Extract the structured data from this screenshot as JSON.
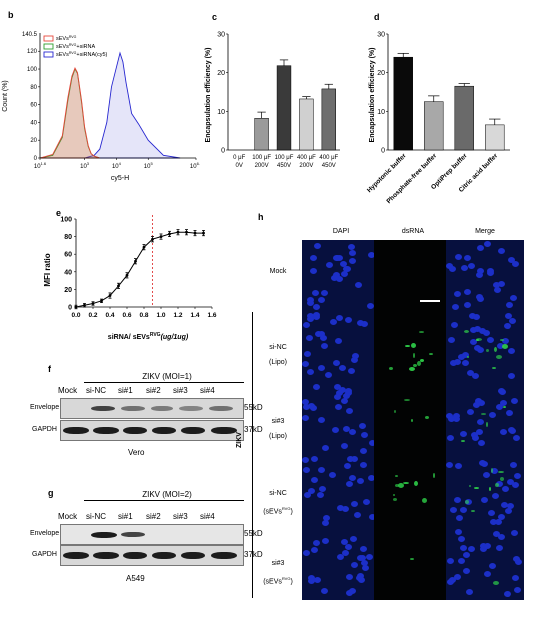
{
  "panels": {
    "b": {
      "letter": "b",
      "legend": [
        {
          "label": "sEVs",
          "sup": "RVG",
          "tail": "",
          "color": "#e8473c"
        },
        {
          "label": "sEVs",
          "sup": "RVG",
          "tail": "+siRNA",
          "color": "#2f9e2f"
        },
        {
          "label": "sEVs",
          "sup": "RVG",
          "tail": "+siRNA(cy5)",
          "color": "#2727d0"
        }
      ],
      "ylabel": "Count (%)",
      "xlabel": "cy5-H",
      "y_top": "140.5",
      "ytick_labels": [
        "0",
        "20",
        "40",
        "60",
        "80",
        "100",
        "120"
      ],
      "xtick_labels": [
        {
          "base": "10",
          "exp": "1.6"
        },
        {
          "base": "10",
          "exp": "3"
        },
        {
          "base": "10",
          "exp": "4"
        },
        {
          "base": "10",
          "exp": "5"
        },
        {
          "base": "10",
          "exp": "6.5"
        }
      ]
    },
    "c": {
      "letter": "c",
      "ylabel": "Encapsulation efficiency (%)",
      "categories": [
        [
          "0 μF",
          "0V"
        ],
        [
          "100 μF",
          "200V"
        ],
        [
          "100 μF",
          "450V"
        ],
        [
          "400 μF",
          "200V"
        ],
        [
          "400 μF",
          "450V"
        ]
      ]
    },
    "d": {
      "letter": "d",
      "ylabel": "Encapsulation efficiency (%)",
      "categories": [
        "Hypotonic buffer",
        "Phosphate-free buffer",
        "OptiPrep buffer",
        "Citric acid buffer"
      ]
    },
    "e": {
      "letter": "e",
      "ylabel": "MFI ratio",
      "xlabel_main": "siRNA/ sEVs",
      "xlabel_sup": "RVG",
      "xlabel_unit": "(ug/1ug)"
    },
    "f": {
      "letter": "f",
      "header": "ZIKV (MOI=1)",
      "lanes": [
        "Mock",
        "si-NC",
        "si#1",
        "si#2",
        "si#3",
        "si#4"
      ],
      "rows": [
        {
          "label": "Envelope",
          "size": "55kD"
        },
        {
          "label": "GAPDH",
          "size": "37kD"
        }
      ],
      "cell_line": "Vero"
    },
    "g": {
      "letter": "g",
      "header": "ZIKV (MOI=2)",
      "lanes": [
        "Mock",
        "si-NC",
        "si#1",
        "si#2",
        "si#3",
        "si#4"
      ],
      "rows": [
        {
          "label": "Envelope",
          "size": "55kD"
        },
        {
          "label": "GAPDH",
          "size": "37kD"
        }
      ],
      "cell_line": "A549"
    },
    "h": {
      "letter": "h",
      "columns": [
        "DAPI",
        "dsRNA",
        "Merge"
      ],
      "rows": [
        {
          "line1": "Mock",
          "line2": "",
          "sup": ""
        },
        {
          "line1": "si-NC",
          "line2": "(Lipo)",
          "sup": ""
        },
        {
          "line1": "si#3",
          "line2": "(Lipo)",
          "sup": ""
        },
        {
          "line1": "si-NC",
          "line2": "(sEVs",
          "sup": "RVG"
        },
        {
          "line1": "si#3",
          "line2": "(sEVs",
          "sup": "RVG"
        }
      ],
      "group_label": "ZIKV"
    }
  },
  "chart_data": [
    {
      "panel": "b",
      "type": "area",
      "title": "",
      "xlabel": "cy5-H",
      "ylabel": "Count (%)",
      "x_scale": "log",
      "xlim": [
        39.8,
        3162277.7
      ],
      "ylim": [
        0,
        140.5
      ],
      "series": [
        {
          "name": "sEVsRVG",
          "color": "#e8473c",
          "x": [
            40,
            100,
            200,
            300,
            400,
            500,
            600,
            800,
            1000,
            1300,
            1600,
            2000,
            3000
          ],
          "values": [
            0,
            4,
            25,
            68,
            92,
            101,
            96,
            65,
            35,
            14,
            5,
            2,
            0
          ]
        },
        {
          "name": "sEVsRVG+siRNA",
          "color": "#2f9e2f",
          "x": [
            40,
            100,
            200,
            300,
            400,
            500,
            600,
            800,
            1000,
            1300,
            1600,
            2000,
            3000
          ],
          "values": [
            0,
            3,
            23,
            65,
            90,
            100,
            95,
            63,
            33,
            13,
            5,
            2,
            0
          ]
        },
        {
          "name": "sEVsRVG+siRNA(cy5)",
          "color": "#2727d0",
          "x": [
            1000,
            2000,
            3000,
            5000,
            7000,
            10000,
            13000,
            16000,
            20000,
            30000,
            50000,
            100000,
            300000,
            1000000
          ],
          "values": [
            0,
            3,
            10,
            40,
            80,
            102,
            118,
            108,
            85,
            50,
            38,
            20,
            3,
            0
          ]
        }
      ]
    },
    {
      "panel": "c",
      "type": "bar",
      "title": "",
      "xlabel": "",
      "ylabel": "Encapsulation efficiency (%)",
      "ylim": [
        0,
        30
      ],
      "yticks": [
        0,
        10,
        20,
        30
      ],
      "categories": [
        "0 μF 0V",
        "100 μF 200V",
        "100 μF 450V",
        "400 μF 200V",
        "400 μF 450V"
      ],
      "values": [
        0,
        8.2,
        21.8,
        13.2,
        15.8
      ],
      "errors": [
        0,
        1.6,
        1.5,
        0.6,
        1.2
      ],
      "colors": [
        "#3a3a3a",
        "#9a9a9a",
        "#3a3a3a",
        "#d0d0d0",
        "#6e6e6e"
      ]
    },
    {
      "panel": "d",
      "type": "bar",
      "title": "",
      "xlabel": "",
      "ylabel": "Encapsulation efficiency (%)",
      "ylim": [
        0,
        30
      ],
      "yticks": [
        0,
        10,
        20,
        30
      ],
      "categories": [
        "Hypotonic buffer",
        "Phosphate-free buffer",
        "OptiPrep buffer",
        "Citric acid buffer"
      ],
      "values": [
        24.0,
        12.5,
        16.5,
        6.5
      ],
      "errors": [
        1.0,
        1.5,
        0.7,
        1.5
      ],
      "colors": [
        "#0a0a0a",
        "#a8a8a8",
        "#6a6a6a",
        "#d8d8d8"
      ]
    },
    {
      "panel": "e",
      "type": "line",
      "title": "",
      "xlabel": "siRNA/ sEVsRVG (ug/1ug)",
      "ylabel": "MFI ratio",
      "xlim": [
        0,
        1.6
      ],
      "ylim": [
        0,
        100
      ],
      "xticks": [
        0.0,
        0.2,
        0.4,
        0.6,
        0.8,
        1.0,
        1.2,
        1.4,
        1.6
      ],
      "yticks": [
        0,
        20,
        40,
        60,
        80,
        100
      ],
      "x": [
        0.0,
        0.1,
        0.2,
        0.3,
        0.4,
        0.5,
        0.6,
        0.7,
        0.8,
        0.9,
        1.0,
        1.1,
        1.2,
        1.3,
        1.4,
        1.5
      ],
      "values": [
        0,
        2,
        4,
        7,
        13,
        24,
        36,
        52,
        68,
        77,
        80,
        83,
        85,
        85,
        84,
        84
      ],
      "errors": [
        2,
        2,
        2,
        2,
        3,
        3,
        3,
        3,
        3,
        3,
        3,
        3,
        3,
        3,
        3,
        3
      ],
      "vline_x": 0.9,
      "vline_color": "#e03a3a"
    }
  ]
}
